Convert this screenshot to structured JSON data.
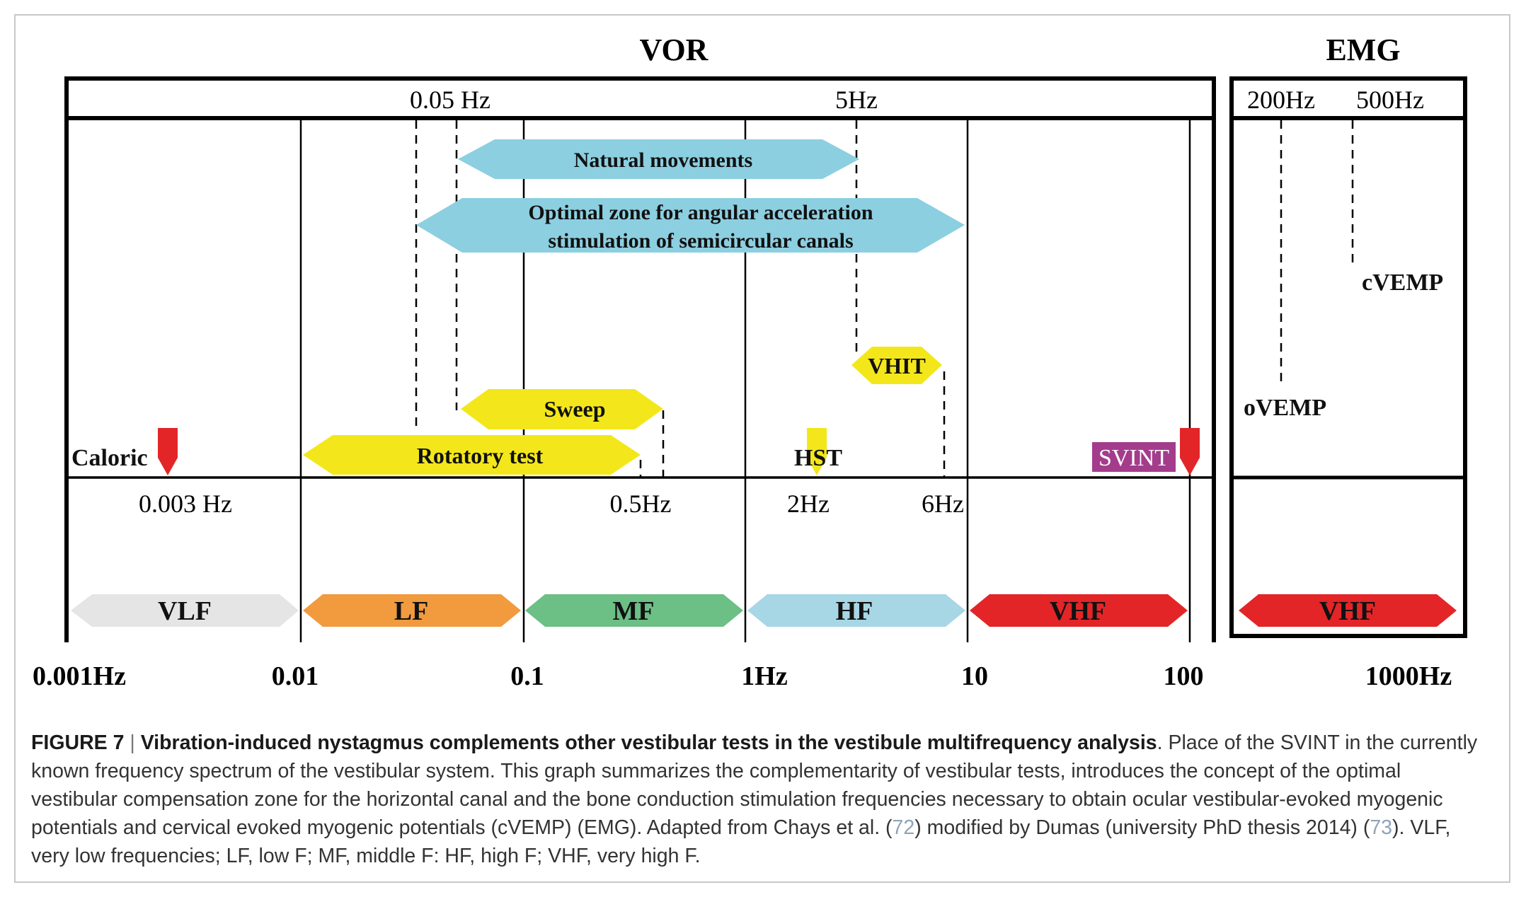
{
  "diagram": {
    "sections": {
      "vor": "VOR",
      "emg": "EMG"
    },
    "top_freq_labels": [
      "0.05 Hz",
      "5Hz"
    ],
    "emg_freq_labels": [
      "200Hz",
      "500Hz"
    ],
    "bottom_freq_labels": [
      "0.003 Hz",
      "0.5Hz",
      "2Hz",
      "6Hz"
    ],
    "axis_ticks": [
      "0.001Hz",
      "0.01",
      "0.1",
      "1Hz",
      "10",
      "100",
      "1000Hz"
    ],
    "tests": {
      "natural_movements": "Natural movements",
      "optimal_zone_line1": "Optimal zone for angular acceleration",
      "optimal_zone_line2": "stimulation of semicircular canals",
      "vhit": "VHIT",
      "sweep": "Sweep",
      "rotatory_test": "Rotatory test",
      "caloric": "Caloric",
      "hst": "HST",
      "svint": "SVINT",
      "cvemp": "cVEMP",
      "ovemp": "oVEMP"
    },
    "bands": [
      {
        "label": "VLF",
        "color": "#e6e5e5"
      },
      {
        "label": "LF",
        "color": "#f19a3e"
      },
      {
        "label": "MF",
        "color": "#6cbf85"
      },
      {
        "label": "HF",
        "color": "#a7d6e5"
      },
      {
        "label": "VHF",
        "color": "#e32528"
      }
    ],
    "emg_band": {
      "label": "VHF",
      "color": "#e32528"
    },
    "colors": {
      "cyan_arrow": "#8ccfe0",
      "yellow_arrow": "#f3e71b",
      "red_marker": "#e32528",
      "svint_bg": "#a43c8c"
    }
  },
  "caption": {
    "figure_label": "FIGURE 7",
    "separator": "|",
    "bold_title": "Vibration-induced nystagmus complements other vestibular tests in the vestibule multifrequency analysis",
    "text_part1": ". Place of the SVINT in the currently known frequency spectrum of the vestibular system. This graph summarizes the complementarity of vestibular tests, introduces the concept of the optimal vestibular compensation zone for the horizontal canal and the bone conduction stimulation frequencies necessary to obtain ocular vestibular-evoked myogenic potentials and cervical evoked myogenic potentials (cVEMP) (EMG). Adapted from Chays et al. (",
    "ref1": "72",
    "text_part2": ") modified by Dumas (university PhD thesis 2014) (",
    "ref2": "73",
    "text_part3": "). VLF, very low frequencies; LF, low F; MF, middle F: HF, high F; VHF, very high F."
  }
}
